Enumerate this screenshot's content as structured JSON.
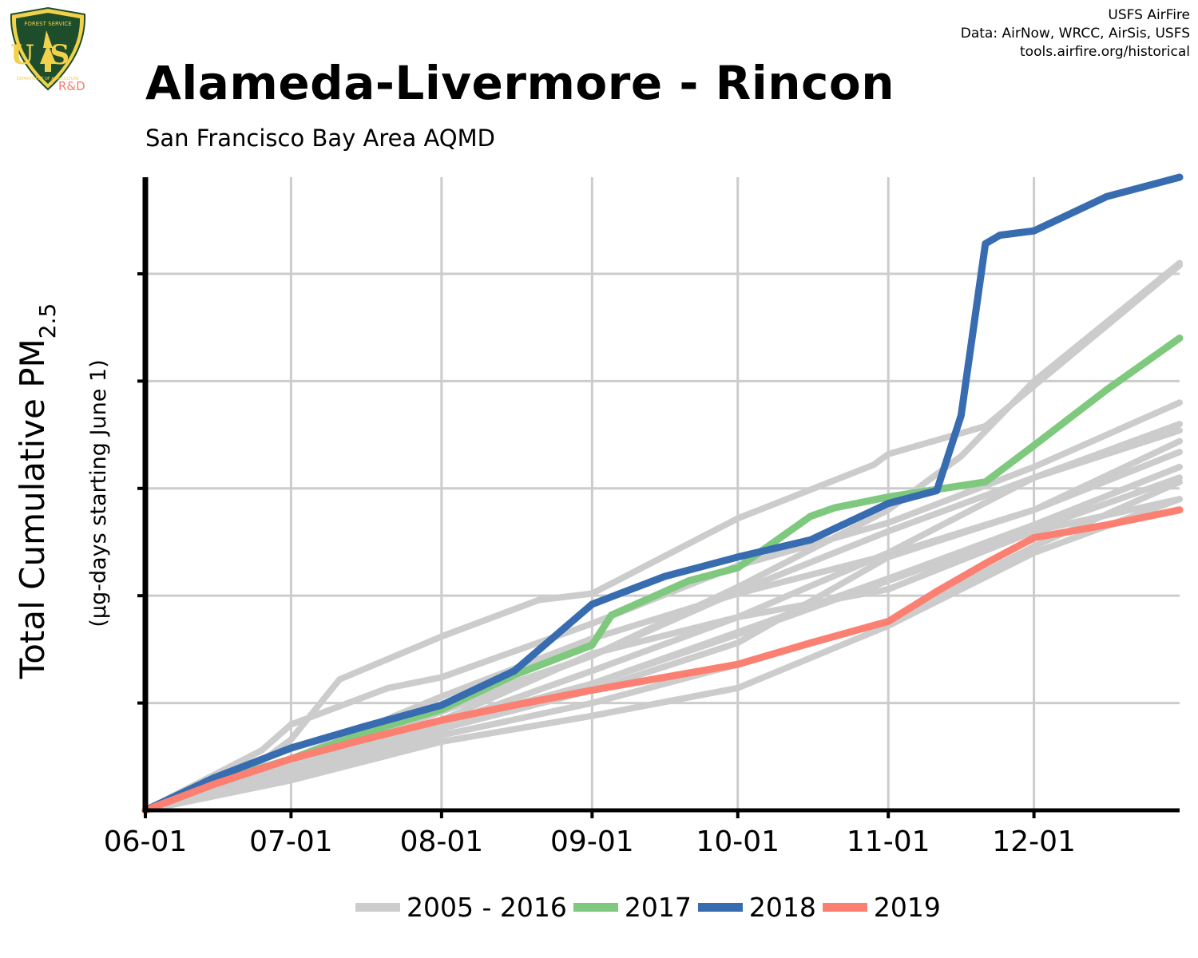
{
  "header": {
    "title": "Alameda-Livermore - Rincon",
    "subtitle": "San Francisco Bay Area AQMD",
    "credits": [
      "USFS AirFire",
      "Data: AirNow, WRCC, AirSis, USFS",
      "tools.airfire.org/historical"
    ]
  },
  "logo": {
    "top_text": "FOREST SERVICE",
    "letters": "US",
    "bottom_text": "DEPARTMENT OF AGRICULTURE",
    "rd": "R&D",
    "colors": {
      "shield": "#1e4d2b",
      "gold": "#f2d14b"
    }
  },
  "chart_data": {
    "type": "line",
    "title": "Alameda-Livermore - Rincon",
    "subtitle": "San Francisco Bay Area AQMD",
    "ylabel": "Total Cumulative PM",
    "ylabel_sub": "2.5",
    "ylabel_units": "(µg-days starting June 1)",
    "y_tick_labels": "none",
    "xticks": [
      "06-01",
      "07-01",
      "08-01",
      "09-01",
      "10-01",
      "11-01",
      "12-01"
    ],
    "xlim": [
      "06-01",
      "12-31"
    ],
    "ylim": [
      0,
      2950
    ],
    "grid": true,
    "legend_position": "bottom",
    "legend": [
      {
        "label": "2005 - 2016",
        "color": "#cccccc"
      },
      {
        "label": "2017",
        "color": "#7fc97f"
      },
      {
        "label": "2018",
        "color": "#386cb0"
      },
      {
        "label": "2019",
        "color": "#fb8072"
      }
    ],
    "series": [
      {
        "name": "2005 - 2016",
        "color": "#cccccc",
        "x": [
          "06-01",
          "06-22",
          "07-01",
          "07-11",
          "08-01",
          "08-21",
          "09-01",
          "10-01",
          "10-29",
          "11-01",
          "11-21",
          "12-31"
        ],
        "y": [
          0,
          180,
          330,
          610,
          810,
          980,
          1010,
          1360,
          1610,
          1660,
          1790,
          2540
        ]
      },
      {
        "name": "2005 - 2016",
        "color": "#cccccc",
        "x": [
          "06-01",
          "07-01",
          "08-01",
          "09-01",
          "10-01",
          "11-01",
          "11-16",
          "12-01",
          "12-31"
        ],
        "y": [
          0,
          220,
          460,
          720,
          1040,
          1400,
          1650,
          2000,
          2550
        ]
      },
      {
        "name": "2005 - 2016",
        "color": "#cccccc",
        "x": [
          "06-01",
          "07-01",
          "08-01",
          "09-01",
          "10-01",
          "11-01",
          "12-01",
          "12-31"
        ],
        "y": [
          0,
          240,
          480,
          720,
          1020,
          1300,
          1550,
          1770
        ]
      },
      {
        "name": "2005 - 2016",
        "color": "#cccccc",
        "x": [
          "06-01",
          "07-01",
          "08-01",
          "09-01",
          "10-01",
          "11-01",
          "12-01",
          "12-31"
        ],
        "y": [
          0,
          200,
          400,
          650,
          900,
          1200,
          1550,
          1800
        ]
      },
      {
        "name": "2005 - 2016",
        "color": "#cccccc",
        "x": [
          "06-01",
          "07-01",
          "08-01",
          "09-01",
          "10-01",
          "11-01",
          "12-01",
          "12-31"
        ],
        "y": [
          0,
          160,
          380,
          560,
          780,
          1180,
          1400,
          1670
        ]
      },
      {
        "name": "2005 - 2016",
        "color": "#cccccc",
        "x": [
          "06-01",
          "07-01",
          "08-01",
          "09-01",
          "10-01",
          "11-01",
          "12-01",
          "12-31"
        ],
        "y": [
          0,
          170,
          350,
          500,
          680,
          880,
          1230,
          1530
        ]
      },
      {
        "name": "2005 - 2016",
        "color": "#cccccc",
        "x": [
          "06-01",
          "07-01",
          "08-01",
          "09-01",
          "10-01",
          "11-01",
          "12-01",
          "12-31"
        ],
        "y": [
          0,
          220,
          400,
          590,
          830,
          1080,
          1330,
          1600
        ]
      },
      {
        "name": "2005 - 2016",
        "color": "#cccccc",
        "x": [
          "06-01",
          "06-25",
          "07-01",
          "07-21",
          "08-01",
          "09-01",
          "10-01",
          "11-01",
          "12-01",
          "12-31"
        ],
        "y": [
          0,
          280,
          400,
          570,
          620,
          870,
          1140,
          1340,
          1600,
          1900
        ]
      },
      {
        "name": "2005 - 2016",
        "color": "#cccccc",
        "x": [
          "06-01",
          "07-01",
          "08-01",
          "09-01",
          "10-01",
          "11-01",
          "12-01",
          "12-31"
        ],
        "y": [
          0,
          180,
          420,
          730,
          900,
          1030,
          1300,
          1450
        ]
      },
      {
        "name": "2005 - 2016",
        "color": "#cccccc",
        "x": [
          "06-01",
          "07-01",
          "08-01",
          "09-01",
          "10-01",
          "11-01",
          "12-01",
          "12-31"
        ],
        "y": [
          0,
          140,
          320,
          440,
          570,
          860,
          1200,
          1450
        ]
      },
      {
        "name": "2005 - 2016",
        "color": "#cccccc",
        "x": [
          "06-01",
          "07-01",
          "08-01",
          "09-01",
          "10-01",
          "11-01",
          "12-01",
          "12-31"
        ],
        "y": [
          0,
          200,
          380,
          590,
          820,
          1070,
          1310,
          1550
        ]
      },
      {
        "name": "2005 - 2016",
        "color": "#cccccc",
        "x": [
          "06-01",
          "07-01",
          "08-01",
          "09-01",
          "10-01",
          "11-01",
          "12-01",
          "12-31"
        ],
        "y": [
          0,
          240,
          530,
          800,
          1010,
          1190,
          1400,
          1720
        ]
      },
      {
        "name": "2017",
        "color": "#7fc97f",
        "x": [
          "06-01",
          "06-15",
          "07-01",
          "07-16",
          "08-01",
          "08-16",
          "09-01",
          "09-05",
          "09-21",
          "10-01",
          "10-16",
          "10-21",
          "11-01",
          "11-21",
          "12-01",
          "12-16",
          "12-31"
        ],
        "y": [
          0,
          130,
          240,
          360,
          470,
          630,
          770,
          910,
          1070,
          1130,
          1370,
          1410,
          1460,
          1530,
          1700,
          1960,
          2200
        ]
      },
      {
        "name": "2018",
        "color": "#386cb0",
        "x": [
          "06-01",
          "06-15",
          "07-01",
          "07-16",
          "08-01",
          "08-16",
          "09-01",
          "09-16",
          "10-01",
          "10-16",
          "11-01",
          "11-11",
          "11-16",
          "11-21",
          "11-24",
          "12-01",
          "12-16",
          "12-31"
        ],
        "y": [
          0,
          150,
          290,
          390,
          490,
          650,
          960,
          1090,
          1180,
          1260,
          1430,
          1490,
          1840,
          2640,
          2680,
          2700,
          2860,
          2950
        ]
      },
      {
        "name": "2019",
        "color": "#fb8072",
        "x": [
          "06-01",
          "06-15",
          "07-01",
          "07-16",
          "08-01",
          "08-16",
          "09-01",
          "09-16",
          "10-01",
          "10-16",
          "11-01",
          "11-11",
          "11-21",
          "12-01",
          "12-16",
          "12-31"
        ],
        "y": [
          0,
          120,
          240,
          330,
          420,
          490,
          560,
          620,
          680,
          780,
          880,
          1020,
          1150,
          1270,
          1330,
          1400
        ]
      }
    ]
  }
}
